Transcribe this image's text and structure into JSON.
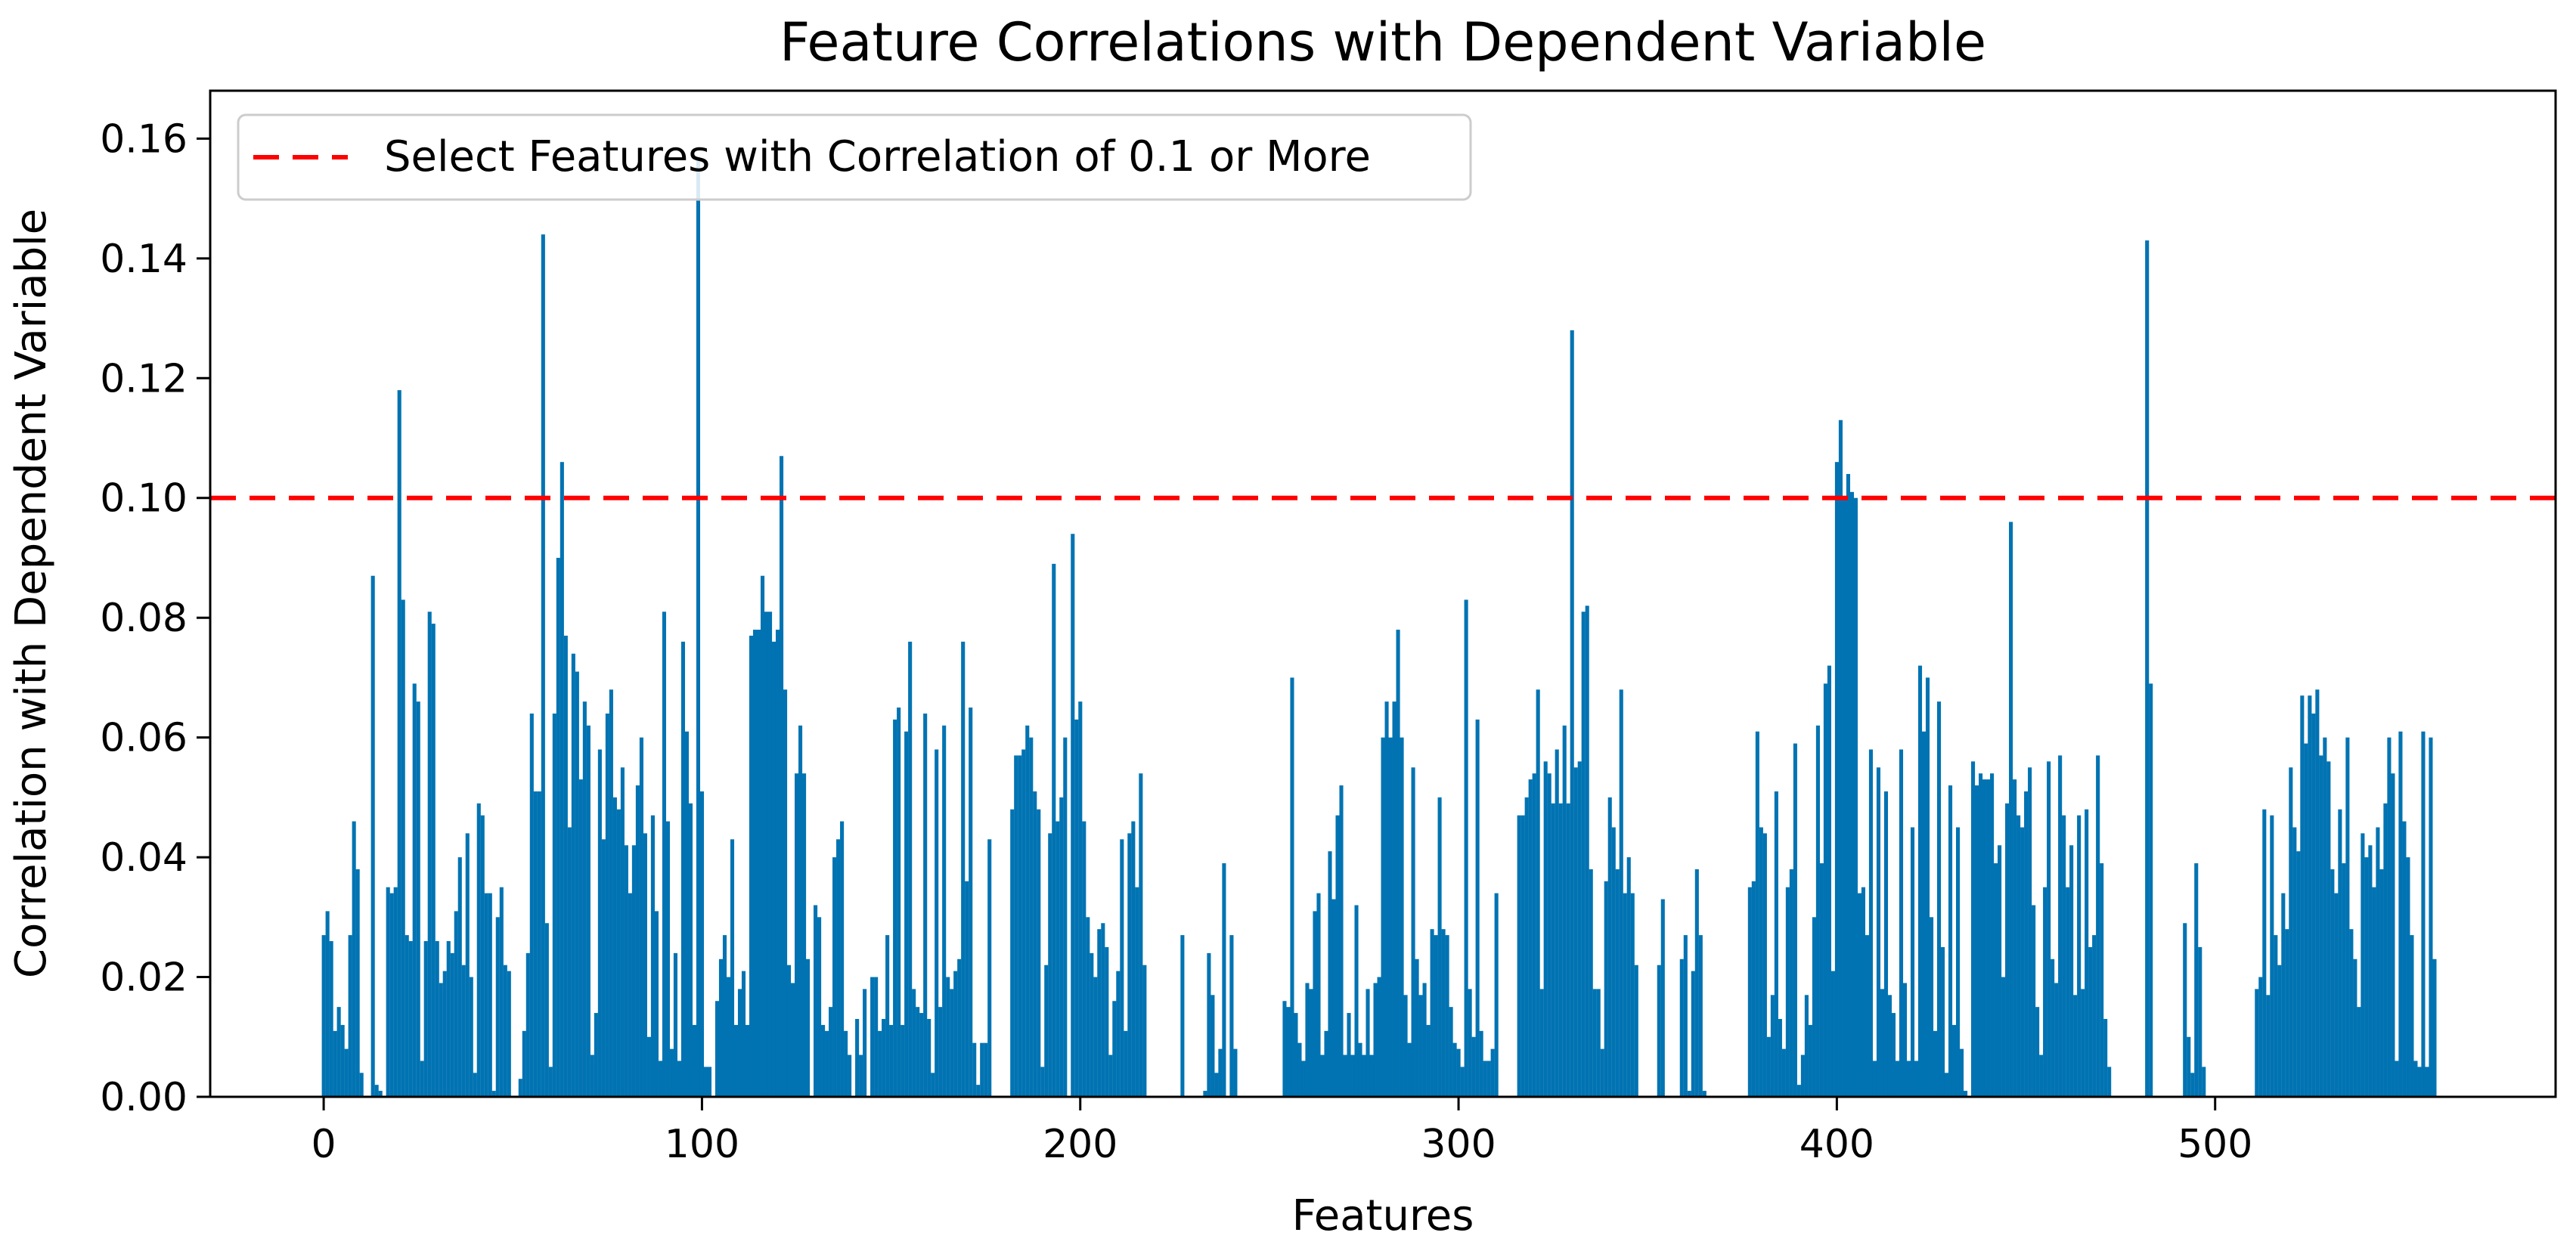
{
  "chart_data": {
    "type": "bar",
    "title": "Feature Correlations with Dependent Variable",
    "xlabel": "Features",
    "ylabel": "Correlation with Dependent Variable",
    "xlim": [
      -30,
      590
    ],
    "ylim": [
      0,
      0.168
    ],
    "x_ticks": [
      0,
      100,
      200,
      300,
      400,
      500
    ],
    "x_tick_labels": [
      "0",
      "100",
      "200",
      "300",
      "400",
      "500"
    ],
    "y_ticks": [
      0,
      0.02,
      0.04,
      0.06,
      0.08,
      0.1,
      0.12,
      0.14,
      0.16
    ],
    "y_tick_labels": [
      "0.00",
      "0.02",
      "0.04",
      "0.06",
      "0.08",
      "0.10",
      "0.12",
      "0.14",
      "0.16"
    ],
    "bar_color": "#0173b2",
    "grid": false,
    "threshold": {
      "value": 0.1,
      "label": "Select Features with Correlation of 0.1 or More",
      "color": "#ff0000",
      "style": "dashed"
    },
    "legend": {
      "location": "upper-left"
    },
    "series": [
      {
        "name": "Correlation",
        "x_start": 0,
        "values": [
          0.027,
          0.031,
          0.026,
          0.011,
          0.015,
          0.012,
          0.008,
          0.027,
          0.046,
          0.038,
          0.004,
          0.0,
          0.0,
          0.087,
          0.002,
          0.001,
          0.0,
          0.035,
          0.034,
          0.035,
          0.118,
          0.083,
          0.027,
          0.026,
          0.069,
          0.066,
          0.006,
          0.026,
          0.081,
          0.079,
          0.026,
          0.019,
          0.021,
          0.026,
          0.024,
          0.031,
          0.04,
          0.022,
          0.044,
          0.02,
          0.004,
          0.049,
          0.047,
          0.034,
          0.034,
          0.001,
          0.03,
          0.035,
          0.022,
          0.021,
          0.0,
          0.0,
          0.003,
          0.011,
          0.024,
          0.064,
          0.051,
          0.051,
          0.144,
          0.029,
          0.005,
          0.064,
          0.09,
          0.106,
          0.077,
          0.045,
          0.074,
          0.071,
          0.053,
          0.066,
          0.062,
          0.007,
          0.014,
          0.058,
          0.043,
          0.064,
          0.068,
          0.05,
          0.048,
          0.055,
          0.042,
          0.034,
          0.042,
          0.052,
          0.06,
          0.044,
          0.01,
          0.047,
          0.031,
          0.006,
          0.081,
          0.046,
          0.008,
          0.024,
          0.006,
          0.076,
          0.061,
          0.049,
          0.012,
          0.157,
          0.051,
          0.005,
          0.005,
          0.0,
          0.016,
          0.023,
          0.027,
          0.02,
          0.043,
          0.012,
          0.018,
          0.021,
          0.012,
          0.077,
          0.078,
          0.078,
          0.087,
          0.081,
          0.081,
          0.076,
          0.078,
          0.107,
          0.068,
          0.022,
          0.019,
          0.054,
          0.062,
          0.054,
          0.023,
          0.0,
          0.032,
          0.03,
          0.012,
          0.011,
          0.015,
          0.04,
          0.043,
          0.046,
          0.011,
          0.007,
          0.0,
          0.013,
          0.007,
          0.018,
          0.0,
          0.02,
          0.02,
          0.011,
          0.013,
          0.027,
          0.012,
          0.063,
          0.065,
          0.012,
          0.061,
          0.076,
          0.018,
          0.015,
          0.014,
          0.064,
          0.013,
          0.004,
          0.058,
          0.015,
          0.062,
          0.02,
          0.018,
          0.021,
          0.023,
          0.076,
          0.036,
          0.065,
          0.009,
          0.002,
          0.009,
          0.009,
          0.043,
          0.0,
          0.0,
          0.0,
          0.0,
          0.0,
          0.048,
          0.057,
          0.057,
          0.058,
          0.062,
          0.06,
          0.051,
          0.048,
          0.005,
          0.022,
          0.044,
          0.089,
          0.046,
          0.05,
          0.06,
          0.0,
          0.094,
          0.063,
          0.066,
          0.046,
          0.03,
          0.024,
          0.02,
          0.028,
          0.029,
          0.025,
          0.007,
          0.016,
          0.021,
          0.043,
          0.011,
          0.044,
          0.046,
          0.035,
          0.054,
          0.022,
          0.0,
          0.0,
          0.0,
          0.0,
          0.0,
          0.0,
          0.0,
          0.0,
          0.0,
          0.027,
          0.0,
          0.0,
          0.0,
          0.0,
          0.0,
          0.001,
          0.024,
          0.017,
          0.004,
          0.008,
          0.039,
          0.0,
          0.027,
          0.008,
          0.0,
          0.0,
          0.0,
          0.0,
          0.0,
          0.0,
          0.0,
          0.0,
          0.0,
          0.0,
          0.0,
          0.0,
          0.016,
          0.015,
          0.07,
          0.014,
          0.009,
          0.006,
          0.019,
          0.018,
          0.031,
          0.034,
          0.007,
          0.011,
          0.041,
          0.033,
          0.047,
          0.052,
          0.007,
          0.014,
          0.007,
          0.032,
          0.009,
          0.007,
          0.018,
          0.007,
          0.019,
          0.02,
          0.06,
          0.066,
          0.06,
          0.066,
          0.078,
          0.06,
          0.017,
          0.009,
          0.055,
          0.023,
          0.017,
          0.019,
          0.012,
          0.028,
          0.027,
          0.05,
          0.028,
          0.027,
          0.015,
          0.009,
          0.008,
          0.005,
          0.083,
          0.018,
          0.01,
          0.063,
          0.011,
          0.006,
          0.006,
          0.008,
          0.034,
          0.0,
          0.0,
          0.0,
          0.0,
          0.0,
          0.047,
          0.047,
          0.05,
          0.053,
          0.054,
          0.068,
          0.018,
          0.056,
          0.054,
          0.049,
          0.058,
          0.049,
          0.062,
          0.049,
          0.128,
          0.055,
          0.056,
          0.081,
          0.082,
          0.038,
          0.018,
          0.018,
          0.008,
          0.036,
          0.05,
          0.045,
          0.038,
          0.068,
          0.034,
          0.04,
          0.034,
          0.022,
          0.0,
          0.0,
          0.0,
          0.0,
          0.0,
          0.022,
          0.033,
          0.0,
          0.0,
          0.0,
          0.0,
          0.023,
          0.027,
          0.001,
          0.021,
          0.038,
          0.027,
          0.001,
          0.0,
          0.0,
          0.0,
          0.0,
          0.0,
          0.0,
          0.0,
          0.0,
          0.0,
          0.0,
          0.0,
          0.035,
          0.036,
          0.061,
          0.045,
          0.044,
          0.01,
          0.017,
          0.051,
          0.013,
          0.008,
          0.035,
          0.038,
          0.059,
          0.002,
          0.007,
          0.017,
          0.012,
          0.03,
          0.062,
          0.039,
          0.069,
          0.072,
          0.021,
          0.106,
          0.113,
          0.1,
          0.104,
          0.101,
          0.1,
          0.034,
          0.035,
          0.027,
          0.058,
          0.006,
          0.055,
          0.018,
          0.051,
          0.017,
          0.014,
          0.006,
          0.058,
          0.019,
          0.006,
          0.045,
          0.006,
          0.072,
          0.061,
          0.07,
          0.03,
          0.011,
          0.066,
          0.025,
          0.004,
          0.052,
          0.012,
          0.045,
          0.008,
          0.001,
          0.0,
          0.056,
          0.052,
          0.054,
          0.053,
          0.053,
          0.054,
          0.039,
          0.042,
          0.02,
          0.049,
          0.096,
          0.053,
          0.047,
          0.045,
          0.051,
          0.055,
          0.032,
          0.015,
          0.007,
          0.035,
          0.056,
          0.023,
          0.019,
          0.057,
          0.047,
          0.035,
          0.042,
          0.017,
          0.047,
          0.018,
          0.048,
          0.025,
          0.027,
          0.057,
          0.039,
          0.013,
          0.005,
          0.0,
          0.0,
          0.0,
          0.0,
          0.0,
          0.0,
          0.0,
          0.0,
          0.0,
          0.143,
          0.069,
          0.0,
          0.0,
          0.0,
          0.0,
          0.0,
          0.0,
          0.0,
          0.0,
          0.029,
          0.01,
          0.004,
          0.039,
          0.025,
          0.005,
          0.0,
          0.0,
          0.0,
          0.0,
          0.0,
          0.0,
          0.0,
          0.0,
          0.0,
          0.0,
          0.0,
          0.0,
          0.0,
          0.018,
          0.02,
          0.048,
          0.017,
          0.047,
          0.027,
          0.022,
          0.034,
          0.028,
          0.055,
          0.045,
          0.041,
          0.067,
          0.059,
          0.067,
          0.064,
          0.068,
          0.057,
          0.06,
          0.056,
          0.038,
          0.034,
          0.048,
          0.039,
          0.06,
          0.028,
          0.023,
          0.015,
          0.044,
          0.04,
          0.042,
          0.035,
          0.045,
          0.038,
          0.049,
          0.06,
          0.054,
          0.006,
          0.061,
          0.046,
          0.04,
          0.027,
          0.006,
          0.005,
          0.061,
          0.005,
          0.06,
          0.023
        ]
      }
    ]
  }
}
